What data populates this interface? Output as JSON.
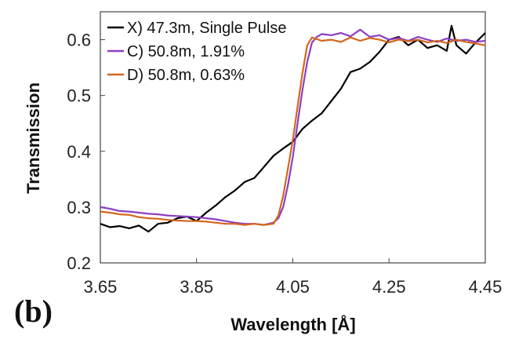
{
  "panel_label": "(b)",
  "chart_data": {
    "type": "line",
    "xlabel": "Wavelength [Å]",
    "ylabel": "Transmission",
    "xlim": [
      3.65,
      4.45
    ],
    "ylim": [
      0.2,
      0.65
    ],
    "xticks": [
      3.65,
      3.85,
      4.05,
      4.25,
      4.45
    ],
    "xtick_labels": [
      "3.65",
      "3.85",
      "4.05",
      "4.25",
      "4.45"
    ],
    "yticks": [
      0.2,
      0.3,
      0.4,
      0.5,
      0.6
    ],
    "ytick_labels": [
      "0.2",
      "0.3",
      "0.4",
      "0.5",
      "0.6"
    ],
    "grid": false,
    "legend_position": "top-left",
    "series": [
      {
        "name": "X) 47.3m, Single Pulse",
        "color": "#000000",
        "x": [
          3.65,
          3.67,
          3.69,
          3.71,
          3.73,
          3.75,
          3.77,
          3.79,
          3.81,
          3.83,
          3.85,
          3.87,
          3.89,
          3.91,
          3.93,
          3.95,
          3.97,
          3.99,
          4.01,
          4.03,
          4.05,
          4.07,
          4.09,
          4.11,
          4.13,
          4.15,
          4.17,
          4.19,
          4.21,
          4.23,
          4.25,
          4.27,
          4.29,
          4.31,
          4.33,
          4.35,
          4.37,
          4.38,
          4.39,
          4.41,
          4.43,
          4.45
        ],
        "y": [
          0.27,
          0.264,
          0.266,
          0.262,
          0.267,
          0.256,
          0.27,
          0.272,
          0.28,
          0.283,
          0.275,
          0.29,
          0.303,
          0.318,
          0.33,
          0.345,
          0.352,
          0.372,
          0.392,
          0.405,
          0.417,
          0.44,
          0.455,
          0.468,
          0.49,
          0.512,
          0.542,
          0.548,
          0.56,
          0.578,
          0.6,
          0.605,
          0.59,
          0.6,
          0.585,
          0.59,
          0.58,
          0.625,
          0.59,
          0.575,
          0.595,
          0.612
        ]
      },
      {
        "name": "C) 50.8m, 1.91%",
        "color": "#8c3fc4",
        "x": [
          3.65,
          3.67,
          3.69,
          3.71,
          3.73,
          3.75,
          3.77,
          3.79,
          3.81,
          3.83,
          3.85,
          3.87,
          3.89,
          3.91,
          3.93,
          3.95,
          3.97,
          3.99,
          4.01,
          4.02,
          4.03,
          4.04,
          4.05,
          4.06,
          4.07,
          4.08,
          4.09,
          4.1,
          4.11,
          4.13,
          4.15,
          4.17,
          4.19,
          4.21,
          4.23,
          4.25,
          4.27,
          4.29,
          4.31,
          4.33,
          4.35,
          4.37,
          4.39,
          4.41,
          4.43,
          4.45
        ],
        "y": [
          0.3,
          0.297,
          0.293,
          0.292,
          0.29,
          0.288,
          0.287,
          0.285,
          0.284,
          0.283,
          0.282,
          0.28,
          0.278,
          0.275,
          0.272,
          0.27,
          0.27,
          0.268,
          0.272,
          0.28,
          0.3,
          0.34,
          0.39,
          0.45,
          0.51,
          0.56,
          0.595,
          0.605,
          0.61,
          0.608,
          0.612,
          0.606,
          0.618,
          0.605,
          0.608,
          0.6,
          0.603,
          0.598,
          0.605,
          0.6,
          0.596,
          0.602,
          0.598,
          0.6,
          0.596,
          0.598
        ]
      },
      {
        "name": "D) 50.8m, 0.63%",
        "color": "#d4661c",
        "x": [
          3.65,
          3.67,
          3.69,
          3.71,
          3.73,
          3.75,
          3.77,
          3.79,
          3.81,
          3.83,
          3.85,
          3.87,
          3.89,
          3.91,
          3.93,
          3.95,
          3.97,
          3.99,
          4.01,
          4.02,
          4.03,
          4.04,
          4.05,
          4.06,
          4.07,
          4.08,
          4.09,
          4.11,
          4.13,
          4.15,
          4.17,
          4.19,
          4.21,
          4.23,
          4.25,
          4.27,
          4.29,
          4.31,
          4.33,
          4.35,
          4.37,
          4.39,
          4.41,
          4.43,
          4.45
        ],
        "y": [
          0.292,
          0.29,
          0.287,
          0.286,
          0.282,
          0.28,
          0.279,
          0.277,
          0.276,
          0.275,
          0.275,
          0.274,
          0.272,
          0.27,
          0.27,
          0.268,
          0.27,
          0.268,
          0.27,
          0.285,
          0.32,
          0.37,
          0.42,
          0.48,
          0.54,
          0.59,
          0.604,
          0.598,
          0.6,
          0.596,
          0.604,
          0.598,
          0.603,
          0.6,
          0.595,
          0.6,
          0.597,
          0.6,
          0.595,
          0.598,
          0.594,
          0.6,
          0.596,
          0.593,
          0.59
        ]
      }
    ]
  }
}
